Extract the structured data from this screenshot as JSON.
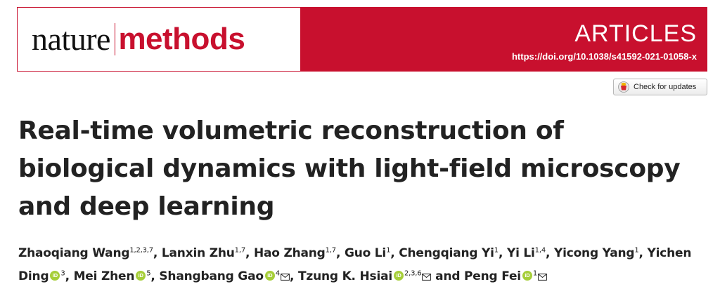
{
  "header": {
    "journal_part1": "nature",
    "journal_part2": "methods",
    "article_type": "ARTICLES",
    "doi": "https://doi.org/10.1038/s41592-021-01058-x",
    "check_updates_label": "Check for updates",
    "brand_color": "#c8102e"
  },
  "title": "Real-time volumetric reconstruction of biological dynamics with light-field microscopy and deep learning",
  "authors": [
    {
      "name": "Zhaoqiang Wang",
      "aff": "1,2,3,7",
      "orcid": false,
      "corr": false,
      "sep": ", "
    },
    {
      "name": "Lanxin Zhu",
      "aff": "1,7",
      "orcid": false,
      "corr": false,
      "sep": ", "
    },
    {
      "name": "Hao Zhang",
      "aff": "1,7",
      "orcid": false,
      "corr": false,
      "sep": ", "
    },
    {
      "name": "Guo Li",
      "aff": "1",
      "orcid": false,
      "corr": false,
      "sep": ", "
    },
    {
      "name": "Chengqiang Yi",
      "aff": "1",
      "orcid": false,
      "corr": false,
      "sep": ", "
    },
    {
      "name": "Yi Li",
      "aff": "1,4",
      "orcid": false,
      "corr": false,
      "sep": ", "
    },
    {
      "name": "Yicong Yang",
      "aff": "1",
      "orcid": false,
      "corr": false,
      "sep": ", "
    },
    {
      "name": "Yichen Ding",
      "aff": "3",
      "orcid": true,
      "corr": false,
      "sep": ", "
    },
    {
      "name": "Mei Zhen",
      "aff": "5",
      "orcid": true,
      "corr": false,
      "sep": ", "
    },
    {
      "name": "Shangbang Gao",
      "aff": "4",
      "orcid": true,
      "corr": true,
      "sep": ", "
    },
    {
      "name": "Tzung K. Hsiai",
      "aff": "2,3,6",
      "orcid": true,
      "corr": true,
      "sep": " and "
    },
    {
      "name": "Peng Fei",
      "aff": "1",
      "orcid": true,
      "corr": true,
      "sep": ""
    }
  ]
}
